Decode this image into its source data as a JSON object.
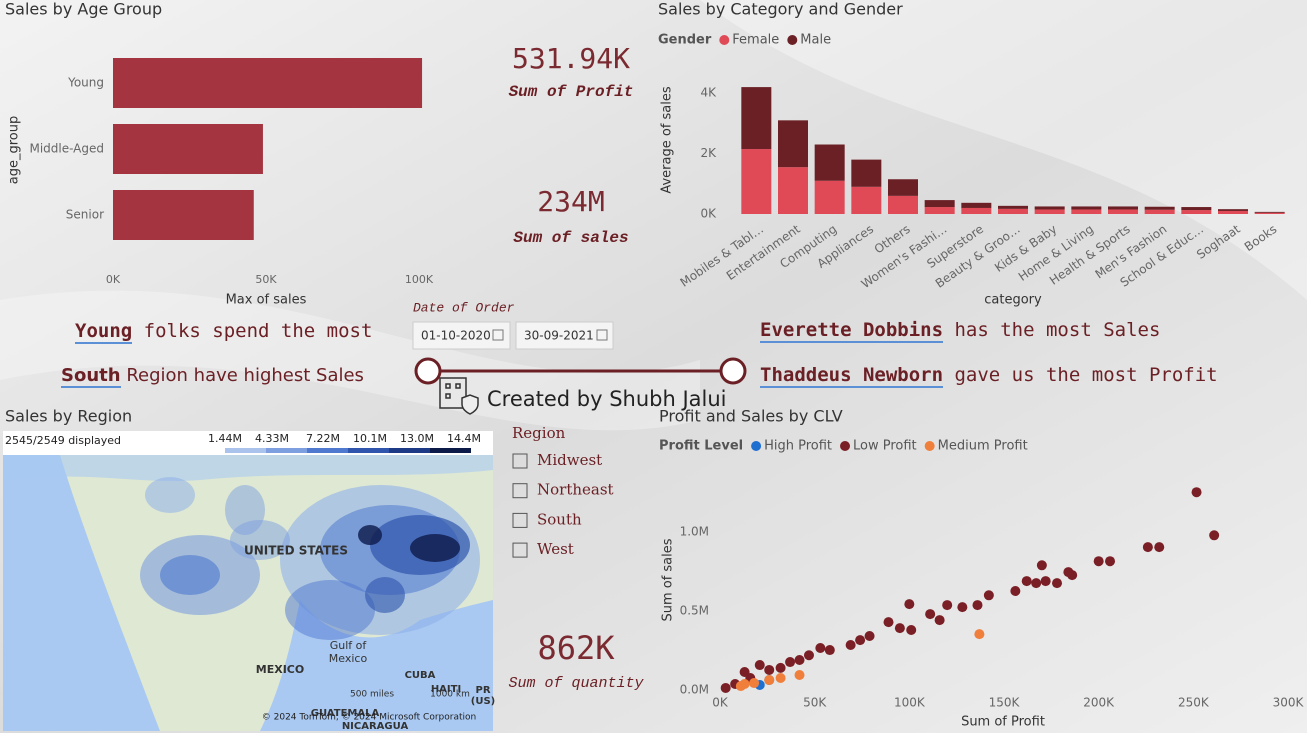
{
  "chart_data": [
    {
      "type": "bar",
      "orientation": "horizontal",
      "title": "Sales by Age Group",
      "x_label": "Max of sales",
      "y_label": "age_group",
      "categories": [
        "Young",
        "Middle-Aged",
        "Senior"
      ],
      "values": [
        101000,
        49000,
        46000
      ],
      "color": "#a4343f",
      "xlim": [
        0,
        100000
      ],
      "xticks": [
        {
          "value": 0,
          "label": "0K"
        },
        {
          "value": 50000,
          "label": "50K"
        },
        {
          "value": 100000,
          "label": "100K"
        }
      ]
    },
    {
      "type": "stacked_bar",
      "title": "Sales by Category and Gender",
      "legend_title": "Gender",
      "x_label": "category",
      "y_label": "Average of sales",
      "categories": [
        "Mobiles & Tabl…",
        "Entertainment",
        "Computing",
        "Appliances",
        "Others",
        "Women's Fashi…",
        "Superstore",
        "Beauty & Groo…",
        "Kids & Baby",
        "Home & Living",
        "Health & Sports",
        "Men's Fashion",
        "School & Educ…",
        "Soghaat",
        "Books"
      ],
      "series": [
        {
          "name": "Female",
          "color": "#e04a57",
          "values": [
            2150,
            1550,
            1100,
            900,
            600,
            230,
            200,
            170,
            150,
            150,
            150,
            140,
            130,
            100,
            40
          ]
        },
        {
          "name": "Male",
          "color": "#6b2025",
          "values": [
            2050,
            1550,
            1200,
            900,
            550,
            230,
            170,
            100,
            100,
            100,
            100,
            100,
            100,
            60,
            30
          ]
        }
      ],
      "ylim": [
        0,
        4700
      ],
      "yticks": [
        {
          "value": 0,
          "label": "0K"
        },
        {
          "value": 2000,
          "label": "2K"
        },
        {
          "value": 4000,
          "label": "4K"
        }
      ]
    },
    {
      "type": "scatter",
      "title": "Profit and Sales by CLV",
      "legend_title": "Profit Level",
      "x_label": "Sum of Profit",
      "y_label": "Sum of sales",
      "series": [
        {
          "name": "High Profit",
          "color": "#1f6fd0",
          "x": [
            26000,
            21000
          ],
          "values": [
            63000,
            32000
          ]
        },
        {
          "name": "Low Profit",
          "color": "#7a1f25",
          "x": [
            251700,
            261000,
            226000,
            232000,
            200000,
            206000,
            184000,
            186000,
            170000,
            162000,
            167000,
            172000,
            178000,
            142000,
            156000,
            136000,
            128000,
            120000,
            100000,
            111000,
            89000,
            95000,
            101000,
            74000,
            69000,
            58000,
            47000,
            37000,
            26000,
            16000,
            8000,
            3000,
            21000,
            42000,
            32000,
            13000,
            53000,
            79000,
            116000
          ],
          "values": [
            1253000,
            980000,
            905000,
            905000,
            816000,
            816000,
            747000,
            728000,
            790000,
            690000,
            677000,
            690000,
            677000,
            600000,
            627000,
            538000,
            525000,
            538000,
            544000,
            481000,
            430000,
            392000,
            380000,
            316000,
            285000,
            253000,
            220000,
            177000,
            127000,
            76000,
            38000,
            13000,
            158000,
            190000,
            140000,
            114000,
            266000,
            342000,
            443000
          ]
        },
        {
          "name": "Medium Profit",
          "color": "#f07f3c",
          "x": [
            137000,
            11000,
            18000,
            26000,
            42000,
            32000,
            13000
          ],
          "values": [
            354000,
            25000,
            44000,
            63000,
            95000,
            76000,
            38000
          ]
        }
      ],
      "xlim": [
        0,
        300000
      ],
      "xticks": [
        {
          "value": 0,
          "label": "0K"
        },
        {
          "value": 50000,
          "label": "50K"
        },
        {
          "value": 100000,
          "label": "100K"
        },
        {
          "value": 150000,
          "label": "150K"
        },
        {
          "value": 200000,
          "label": "200K"
        },
        {
          "value": 250000,
          "label": "250K"
        },
        {
          "value": 300000,
          "label": "300K"
        }
      ],
      "ylim": [
        0,
        1400000
      ],
      "yticks": [
        {
          "value": 0,
          "label": "0.0M"
        },
        {
          "value": 500000,
          "label": "0.5M"
        },
        {
          "value": 1000000,
          "label": "1.0M"
        }
      ]
    },
    {
      "type": "map",
      "title": "Sales by Region",
      "status": "2545/2549 displayed",
      "scale_labels": [
        "1.44M",
        "4.33M",
        "7.22M",
        "10.1M",
        "13.0M",
        "14.4M"
      ],
      "scale_colors": [
        "#a9c3ec",
        "#7d9fe0",
        "#4f78cf",
        "#2f55ad",
        "#1d3a86",
        "#0c1a4a"
      ],
      "place_labels": [
        "UNITED STATES",
        "Gulf of",
        "Mexico",
        "MEXICO",
        "CUBA",
        "HAITI",
        "PR",
        "(US)",
        "GUATEMALA",
        "NICARAGUA",
        "500 miles",
        "1000 km"
      ],
      "attribution": "© 2024 TomTom, © 2024 Microsoft Corporation"
    }
  ],
  "cards": [
    {
      "value": "531.94K",
      "label": "Sum of Profit"
    },
    {
      "value": "234M",
      "label": "Sum of sales"
    },
    {
      "value": "862K",
      "label": "Sum of quantity"
    }
  ],
  "insights": [
    {
      "key": "Young",
      "text": "folks  spend the most"
    },
    {
      "key": "South",
      "text": "Region have highest Sales"
    },
    {
      "key": "Everette Dobbins",
      "text": "has the most Sales"
    },
    {
      "key": "Thaddeus Newborn",
      "text": "gave us the most Profit"
    }
  ],
  "date_slicer": {
    "title": "Date of Order",
    "start": "01-10-2020",
    "end": "30-09-2021"
  },
  "region_slicer": {
    "title": "Region",
    "options": [
      "Midwest",
      "Northeast",
      "South",
      "West"
    ]
  },
  "credit": "Created by Shubh Jalui"
}
